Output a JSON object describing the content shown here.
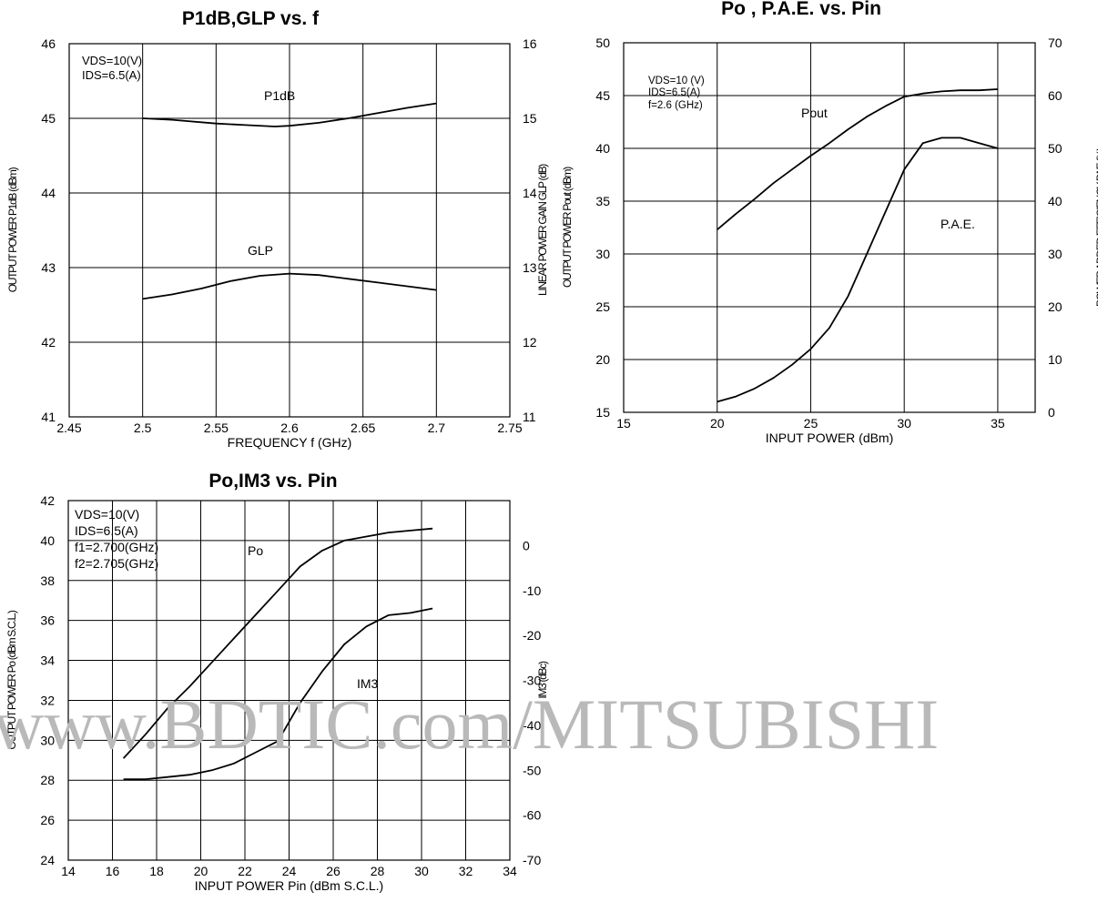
{
  "charts": [
    {
      "id": "chart1",
      "type": "line",
      "title": "P1dB,GLP vs. f",
      "xlabel": "FREQUENCY f (GHz)",
      "ylabel_left": "OUTPUT POWER P1dB (dBm)",
      "ylabel_right": "LINEAR POWER GAIN GLP (dB)",
      "xlim": [
        2.45,
        2.75
      ],
      "xticks": [
        "2.45",
        "2.5",
        "2.55",
        "2.6",
        "2.65",
        "2.7",
        "2.75"
      ],
      "ylim_left": [
        41,
        46
      ],
      "yticks_left": [
        "41",
        "42",
        "43",
        "44",
        "45",
        "46"
      ],
      "ylim_right": [
        11,
        16
      ],
      "yticks_right": [
        "11",
        "12",
        "13",
        "14",
        "15",
        "16"
      ],
      "grid": true,
      "notes": [
        "VDS=10(V)",
        "IDS=6.5(A)"
      ],
      "series": [
        {
          "name": "P1dB",
          "axis": "left",
          "x": [
            2.5,
            2.52,
            2.55,
            2.57,
            2.59,
            2.6,
            2.62,
            2.64,
            2.66,
            2.68,
            2.7
          ],
          "y": [
            45.0,
            44.98,
            44.93,
            44.91,
            44.89,
            44.9,
            44.94,
            45.0,
            45.07,
            45.14,
            45.2
          ]
        },
        {
          "name": "GLP",
          "axis": "right",
          "x": [
            2.5,
            2.52,
            2.54,
            2.56,
            2.58,
            2.6,
            2.62,
            2.64,
            2.66,
            2.68,
            2.7
          ],
          "y": [
            12.58,
            12.64,
            12.72,
            12.82,
            12.89,
            12.92,
            12.9,
            12.85,
            12.8,
            12.75,
            12.7
          ]
        }
      ]
    },
    {
      "id": "chart2",
      "type": "line",
      "title": "Po , P.A.E. vs. Pin",
      "xlabel": "INPUT POWER (dBm)",
      "ylabel_left": "OUTPUT POWER Pout (dBm)",
      "ylabel_right": "POWER ADDED EFFICIENCY PAE (%)",
      "xlim": [
        15,
        37
      ],
      "xticks": [
        "15",
        "20",
        "25",
        "30",
        "35"
      ],
      "xtick_values": [
        15,
        20,
        25,
        30,
        35
      ],
      "ylim_left": [
        15,
        50
      ],
      "yticks_left": [
        "15",
        "20",
        "25",
        "30",
        "35",
        "40",
        "45",
        "50"
      ],
      "ylim_right": [
        0,
        70
      ],
      "yticks_right": [
        "0",
        "10",
        "20",
        "30",
        "40",
        "50",
        "60",
        "70"
      ],
      "grid": true,
      "notes": [
        "VDS=10 (V)",
        "IDS=6.5(A)",
        "f=2.6 (GHz)"
      ],
      "series": [
        {
          "name": "Pout",
          "axis": "left",
          "x": [
            20,
            21,
            22,
            23,
            24,
            25,
            26,
            27,
            28,
            29,
            30,
            31,
            32,
            33,
            34,
            35
          ],
          "y": [
            32.3,
            33.8,
            35.2,
            36.7,
            38.0,
            39.3,
            40.5,
            41.8,
            43.0,
            44.0,
            44.9,
            45.2,
            45.4,
            45.5,
            45.5,
            45.6
          ]
        },
        {
          "name": "P.A.E.",
          "axis": "right",
          "x": [
            20,
            21,
            22,
            23,
            24,
            25,
            26,
            27,
            28,
            29,
            30,
            31,
            32,
            33,
            34,
            35
          ],
          "y": [
            2,
            3,
            4.5,
            6.5,
            9,
            12,
            16,
            22,
            30,
            38,
            46,
            51,
            52,
            52,
            51,
            50
          ]
        }
      ]
    },
    {
      "id": "chart3",
      "type": "line",
      "title": "Po,IM3 vs. Pin",
      "xlabel": "INPUT POWER Pin (dBm S.C.L.)",
      "ylabel_left": "OUTPUT POWER Po (dBm S.C.L.)",
      "ylabel_right": "IM3 (dBc)",
      "xlim": [
        14,
        34
      ],
      "xticks": [
        "14",
        "16",
        "18",
        "20",
        "22",
        "24",
        "26",
        "28",
        "30",
        "32",
        "34"
      ],
      "ylim_left": [
        24,
        42
      ],
      "yticks_left": [
        "24",
        "26",
        "28",
        "30",
        "32",
        "34",
        "36",
        "38",
        "40",
        "42"
      ],
      "ylim_right": [
        -70,
        10
      ],
      "yticks_right": [
        "-70",
        "-60",
        "-50",
        "-40",
        "-30",
        "-20",
        "-10",
        "0"
      ],
      "grid": true,
      "notes": [
        "VDS=10(V)",
        "IDS=6.5(A)",
        "f1=2.700(GHz)",
        "f2=2.705(GHz)"
      ],
      "series": [
        {
          "name": "Po",
          "axis": "left",
          "x": [
            16.5,
            17.5,
            18.5,
            19.5,
            20.5,
            21.5,
            22.5,
            23.5,
            24.5,
            25.5,
            26.5,
            27.5,
            28.5,
            29.5,
            30.5
          ],
          "y": [
            29.1,
            30.3,
            31.6,
            32.7,
            33.9,
            35.1,
            36.3,
            37.5,
            38.7,
            39.5,
            40.0,
            40.2,
            40.4,
            40.5,
            40.6
          ]
        },
        {
          "name": "IM3",
          "axis": "right",
          "x": [
            16.5,
            17.5,
            18.5,
            19.5,
            20.5,
            21.5,
            22.5,
            23.5,
            24.5,
            25.5,
            26.5,
            27.5,
            28.5,
            29.5,
            30.5
          ],
          "y": [
            -52,
            -52,
            -51.5,
            -51,
            -50,
            -48.5,
            -46,
            -43.5,
            -35,
            -28,
            -22,
            -18,
            -15.5,
            -15,
            -14
          ]
        }
      ]
    }
  ],
  "watermark": "www.BDTIC.com/MITSUBISHI"
}
